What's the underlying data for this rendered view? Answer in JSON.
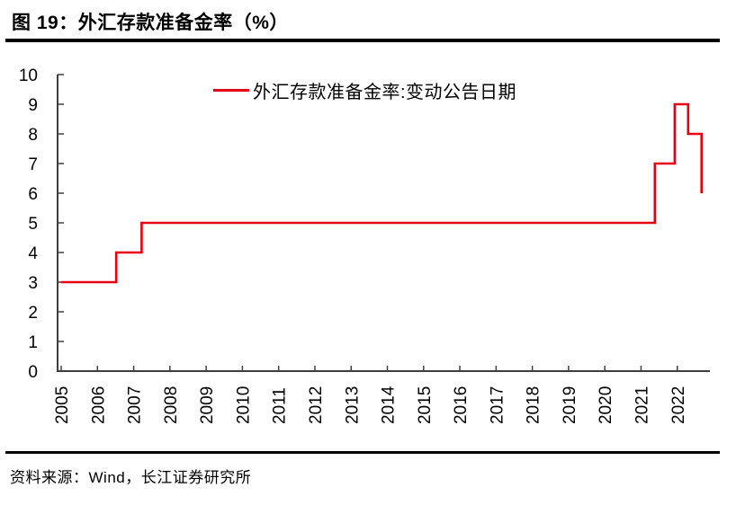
{
  "figure": {
    "number_and_title": "图 19：外汇存款准备金率（%）"
  },
  "source": {
    "text": "资料来源：Wind，长江证券研究所"
  },
  "chart_data": {
    "type": "line",
    "line_style": "step-post",
    "title": "外汇存款准备金率（%）",
    "legend_label": "外汇存款准备金率:变动公告日期",
    "legend_position": "top-center",
    "line_color": "#e60012",
    "axis_color": "#3f3f3f",
    "tick_label_color": "#000000",
    "grid": false,
    "xlabel": "",
    "ylabel": "",
    "xlim": [
      2004.9,
      2022.9
    ],
    "ylim": [
      0,
      10
    ],
    "x_ticks": [
      2005,
      2006,
      2007,
      2008,
      2009,
      2010,
      2011,
      2012,
      2013,
      2014,
      2015,
      2016,
      2017,
      2018,
      2019,
      2020,
      2021,
      2022
    ],
    "y_ticks": [
      0,
      1,
      2,
      3,
      4,
      5,
      6,
      7,
      8,
      9,
      10
    ],
    "steps": [
      {
        "x": 2005.0,
        "y": 3
      },
      {
        "x": 2006.52,
        "y": 4
      },
      {
        "x": 2007.22,
        "y": 5
      },
      {
        "x": 2021.38,
        "y": 7
      },
      {
        "x": 2021.93,
        "y": 9
      },
      {
        "x": 2022.3,
        "y": 8
      },
      {
        "x": 2022.67,
        "y": 6
      }
    ]
  }
}
